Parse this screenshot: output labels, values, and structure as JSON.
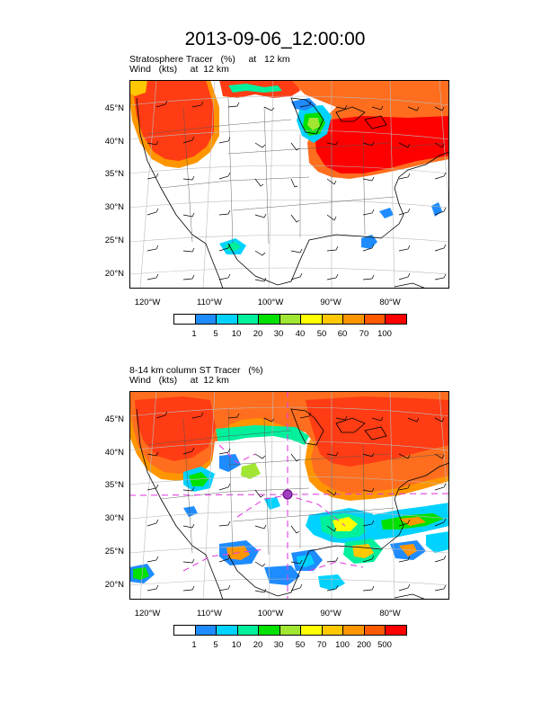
{
  "title": "2013-09-06_12:00:00",
  "panels": [
    {
      "line1": "Stratosphere Tracer   (%)     at   12 km",
      "line2": "Wind   (kts)     at  12 km",
      "lat_labels": [
        "45°N",
        "40°N",
        "35°N",
        "30°N",
        "25°N",
        "20°N"
      ],
      "lon_labels": [
        "120°W",
        "110°W",
        "100°W",
        "90°W",
        "80°W"
      ],
      "colorbar_labels": [
        "1",
        "5",
        "10",
        "20",
        "30",
        "40",
        "50",
        "60",
        "70",
        "100"
      ]
    },
    {
      "line1": "8-14 km column ST Tracer   (%)",
      "line2": "Wind   (kts)     at  12 km",
      "lat_labels": [
        "45°N",
        "40°N",
        "35°N",
        "30°N",
        "25°N",
        "20°N"
      ],
      "lon_labels": [
        "120°W",
        "110°W",
        "100°W",
        "90°W",
        "80°W"
      ],
      "colorbar_labels": [
        "1",
        "5",
        "10",
        "20",
        "30",
        "50",
        "70",
        "100",
        "200",
        "500"
      ]
    }
  ],
  "colors": {
    "levels": [
      "#ffffff",
      "#1e8cff",
      "#00d2ff",
      "#00f09c",
      "#00e100",
      "#a0e632",
      "#ffff00",
      "#ffc800",
      "#ff9600",
      "#ff5a00",
      "#ff0000"
    ],
    "high": "#ff3c14",
    "mid": "#ff6e1e",
    "magenta": "#e040e0"
  }
}
